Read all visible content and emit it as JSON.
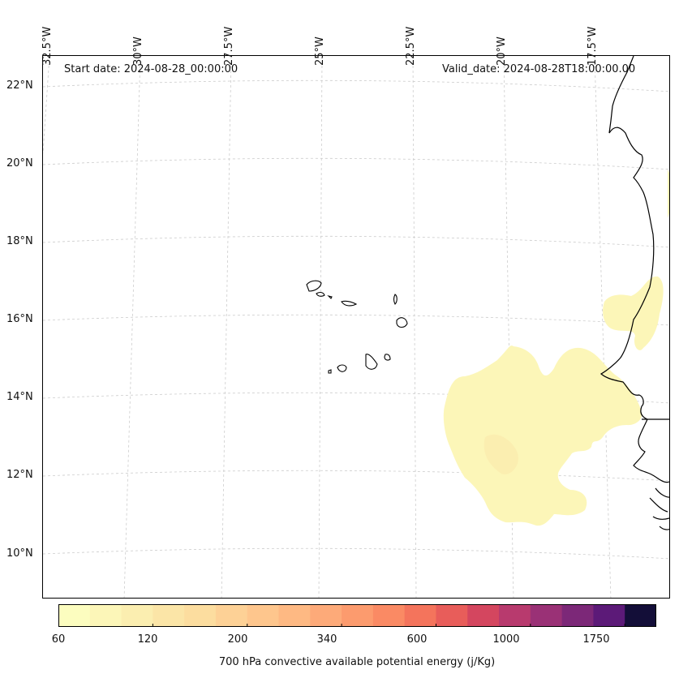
{
  "map": {
    "start_date": "Start date: 2024-08-28_00:00:00",
    "valid_date": "Valid_date: 2024-08-28T18:00:00.00",
    "longitude_labels": [
      "32.5°W",
      "30°W",
      "27.5°W",
      "25°W",
      "22.5°W",
      "20°W",
      "17.5°W"
    ],
    "latitude_labels": [
      "22°N",
      "20°N",
      "18°N",
      "16°N",
      "14°N",
      "12°N",
      "10°N"
    ],
    "colorbar": {
      "title": "700 hPa convective available potential energy (j/Kg)",
      "tick_labels": [
        "60",
        "120",
        "200",
        "340",
        "600",
        "1000",
        "1750"
      ],
      "colors": [
        "#fcfdbf",
        "#fcf6b8",
        "#fbeeb0",
        "#fbe5a7",
        "#fcdd9f",
        "#fdd196",
        "#fec68d",
        "#feb983",
        "#fdaa79",
        "#fc9b6e",
        "#fa8a64",
        "#f4745c",
        "#e85d5a",
        "#d4465f",
        "#b83a6e",
        "#9a3176",
        "#7c2878",
        "#5c1a78",
        "#130e38"
      ]
    }
  }
}
